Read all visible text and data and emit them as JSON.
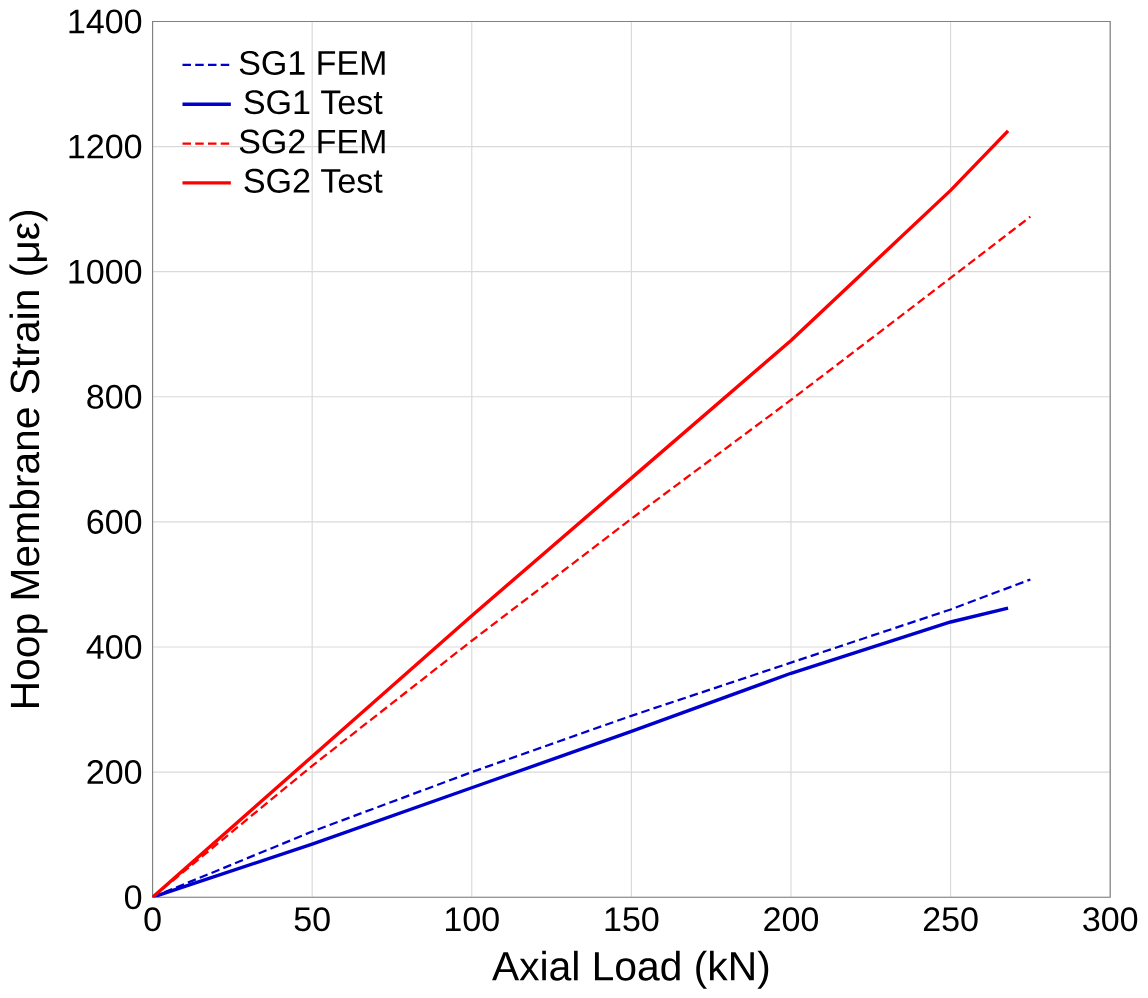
{
  "chart_data": {
    "type": "line",
    "xlabel": "Axial Load (kN)",
    "ylabel": "Hoop Membrane Strain (με)",
    "xlim": [
      0,
      300
    ],
    "ylim": [
      0,
      1400
    ],
    "xticks": [
      0,
      50,
      100,
      150,
      200,
      250,
      300
    ],
    "yticks": [
      0,
      200,
      400,
      600,
      800,
      1000,
      1200,
      1400
    ],
    "grid": true,
    "legend": "top left",
    "series": [
      {
        "name": "SG1 FEM",
        "color": "#0000cc",
        "line_style": "dashed",
        "x": [
          0,
          50,
          100,
          150,
          200,
          250,
          275
        ],
        "values": [
          0,
          105,
          200,
          290,
          375,
          460,
          508
        ]
      },
      {
        "name": "SG1 Test",
        "color": "#0000cc",
        "line_style": "solid",
        "x": [
          0,
          50,
          100,
          150,
          200,
          250,
          268
        ],
        "values": [
          0,
          85,
          175,
          265,
          358,
          440,
          462
        ]
      },
      {
        "name": "SG2 FEM",
        "color": "#ff0000",
        "line_style": "dashed",
        "x": [
          0,
          50,
          100,
          150,
          200,
          250,
          275
        ],
        "values": [
          0,
          210,
          410,
          605,
          795,
          990,
          1088
        ]
      },
      {
        "name": "SG2 Test",
        "color": "#ff0000",
        "line_style": "solid",
        "x": [
          0,
          50,
          100,
          150,
          200,
          250,
          268
        ],
        "values": [
          0,
          225,
          450,
          670,
          890,
          1130,
          1225
        ]
      }
    ]
  }
}
